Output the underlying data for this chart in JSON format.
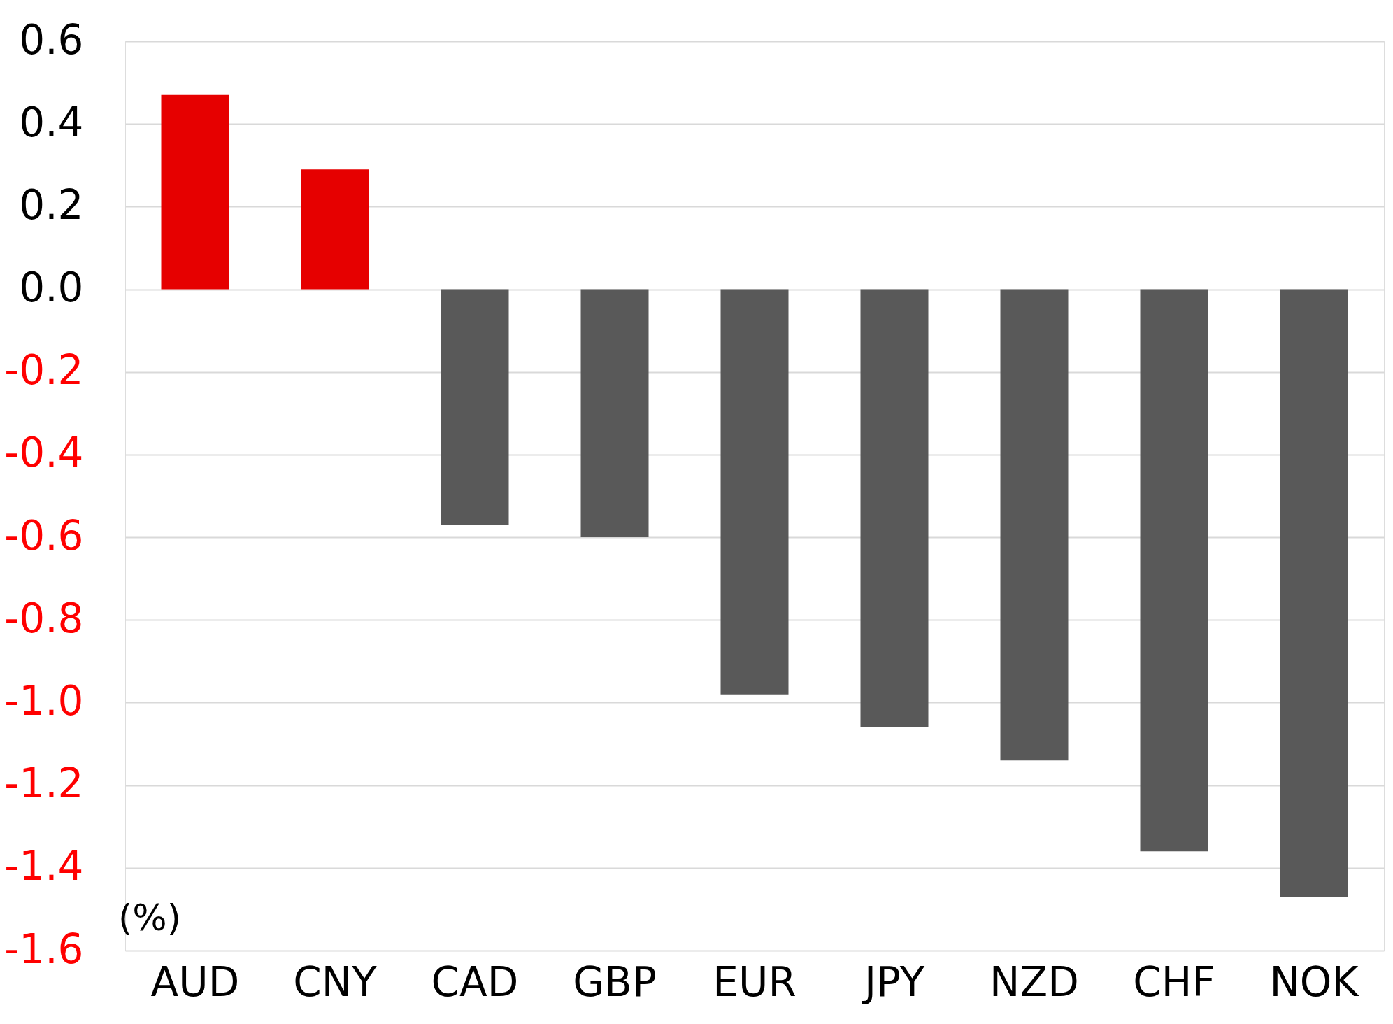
{
  "chart_data": {
    "type": "bar",
    "categories": [
      "AUD",
      "CNY",
      "CAD",
      "GBP",
      "EUR",
      "JPY",
      "NZD",
      "CHF",
      "NOK"
    ],
    "values": [
      0.47,
      0.29,
      -0.57,
      -0.6,
      -0.98,
      -1.06,
      -1.14,
      -1.36,
      -1.47
    ],
    "colors": [
      "#e60000",
      "#e60000",
      "#595959",
      "#595959",
      "#595959",
      "#595959",
      "#595959",
      "#595959",
      "#595959"
    ],
    "ylim": [
      -1.6,
      0.6
    ],
    "yticks": [
      {
        "value": 0.6,
        "label": "0.6"
      },
      {
        "value": 0.4,
        "label": "0.4"
      },
      {
        "value": 0.2,
        "label": "0.2"
      },
      {
        "value": 0,
        "label": "0.0"
      },
      {
        "value": -0.2,
        "label": "-0.2"
      },
      {
        "value": -0.4,
        "label": "-0.4"
      },
      {
        "value": -0.6,
        "label": "-0.6"
      },
      {
        "value": -0.8,
        "label": "-0.8"
      },
      {
        "value": -1.0,
        "label": "-1.0"
      },
      {
        "value": -1.2,
        "label": "-1.2"
      },
      {
        "value": -1.4,
        "label": "-1.4"
      },
      {
        "value": -1.6,
        "label": "-1.6"
      }
    ],
    "annotations": [
      "(%)"
    ],
    "grid": "y"
  }
}
